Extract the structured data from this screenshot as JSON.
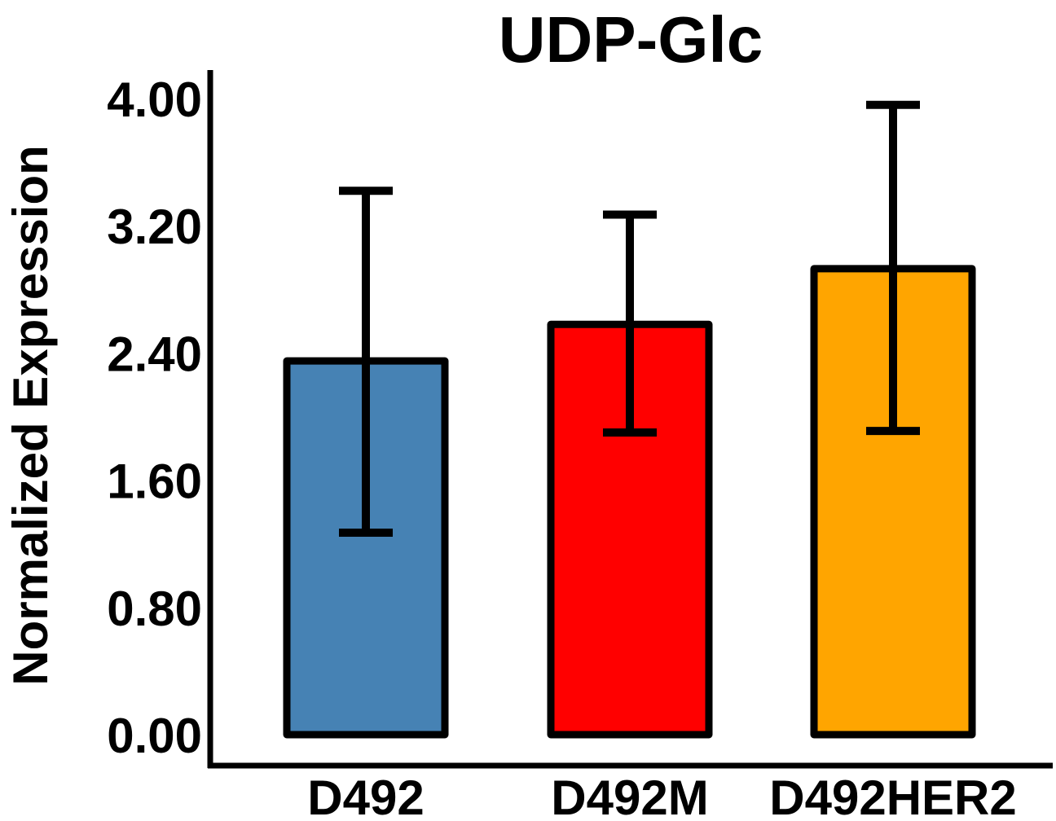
{
  "chart_data": {
    "type": "bar",
    "title": "UDP-Glc",
    "xlabel": "",
    "ylabel": "Normalized Expression",
    "ylim": [
      0,
      4.0
    ],
    "yticks": [
      "0.00",
      "0.80",
      "1.60",
      "2.40",
      "3.20",
      "4.00"
    ],
    "categories": [
      "D492",
      "D492M",
      "D492HER2"
    ],
    "values": [
      2.35,
      2.58,
      2.93
    ],
    "error_low": [
      1.27,
      1.9,
      1.91
    ],
    "error_high": [
      3.42,
      3.27,
      3.96
    ],
    "colors": [
      "#4682b4",
      "#ff0000",
      "#ffa500"
    ],
    "grid": false,
    "legend": "none"
  }
}
